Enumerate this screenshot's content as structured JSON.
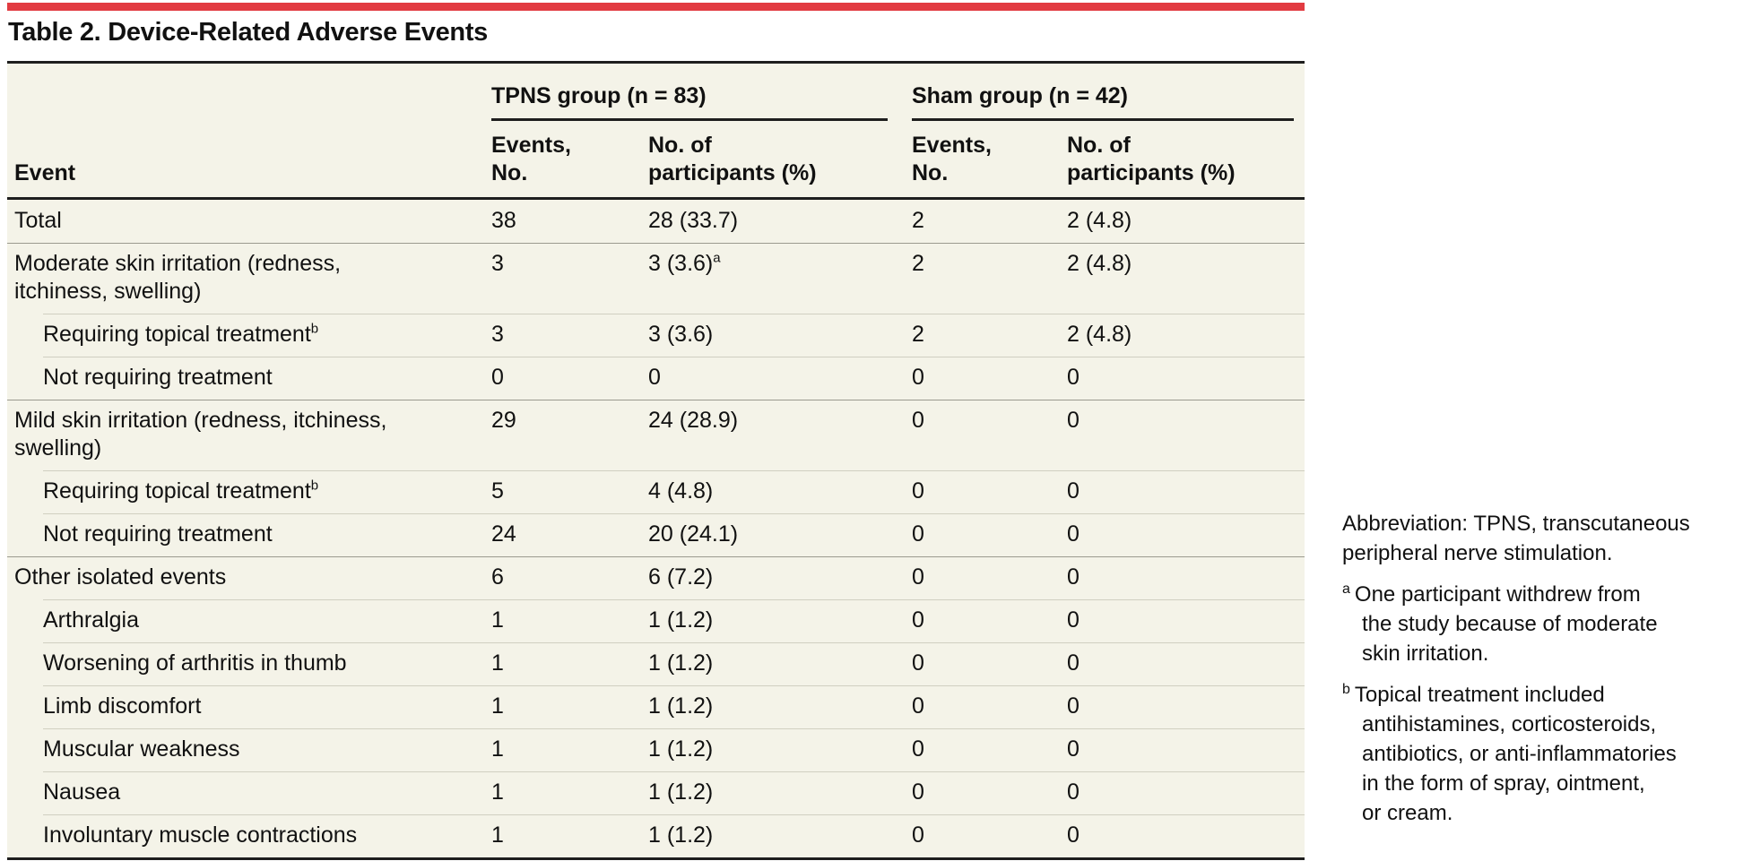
{
  "title": "Table 2. Device-Related Adverse Events",
  "colors": {
    "accent_red": "#e23b41",
    "table_bg": "#f4f3e8",
    "rule_dark": "#1e1e1e",
    "divider_section": "#9b9a8f",
    "divider_light": "#d0cfc1",
    "text": "#111111"
  },
  "table": {
    "groups": [
      {
        "label": "TPNS group (n = 83)"
      },
      {
        "label": "Sham group (n = 42)"
      }
    ],
    "columns": [
      "Event",
      "Events,\nNo.",
      "No. of\nparticipants (%)",
      "Events,\nNo.",
      "No. of\nparticipants (%)"
    ],
    "rows": [
      {
        "label": {
          "text": "Total"
        },
        "indent": false,
        "cells": [
          {
            "text": "38"
          },
          {
            "text": "28 (33.7)"
          },
          {
            "text": "2"
          },
          {
            "text": "2 (4.8)"
          }
        ]
      },
      {
        "label": {
          "text": "Moderate skin irritation (redness, itchiness, swelling)"
        },
        "indent": false,
        "cells": [
          {
            "text": "3"
          },
          {
            "text": "3 (3.6)",
            "sup": "a"
          },
          {
            "text": "2"
          },
          {
            "text": "2 (4.8)"
          }
        ]
      },
      {
        "label": {
          "text": "Requiring topical treatment",
          "sup": "b"
        },
        "indent": true,
        "cells": [
          {
            "text": "3"
          },
          {
            "text": "3 (3.6)"
          },
          {
            "text": "2"
          },
          {
            "text": "2 (4.8)"
          }
        ]
      },
      {
        "label": {
          "text": "Not requiring treatment"
        },
        "indent": true,
        "cells": [
          {
            "text": "0"
          },
          {
            "text": "0"
          },
          {
            "text": "0"
          },
          {
            "text": "0"
          }
        ]
      },
      {
        "label": {
          "text": "Mild skin irritation (redness, itchiness, swelling)"
        },
        "indent": false,
        "cells": [
          {
            "text": "29"
          },
          {
            "text": "24 (28.9)"
          },
          {
            "text": "0"
          },
          {
            "text": "0"
          }
        ]
      },
      {
        "label": {
          "text": "Requiring topical treatment",
          "sup": "b"
        },
        "indent": true,
        "cells": [
          {
            "text": "5"
          },
          {
            "text": "4 (4.8)"
          },
          {
            "text": "0"
          },
          {
            "text": "0"
          }
        ]
      },
      {
        "label": {
          "text": "Not requiring treatment"
        },
        "indent": true,
        "cells": [
          {
            "text": "24"
          },
          {
            "text": "20 (24.1)"
          },
          {
            "text": "0"
          },
          {
            "text": "0"
          }
        ]
      },
      {
        "label": {
          "text": "Other isolated events"
        },
        "indent": false,
        "cells": [
          {
            "text": "6"
          },
          {
            "text": "6 (7.2)"
          },
          {
            "text": "0"
          },
          {
            "text": "0"
          }
        ]
      },
      {
        "label": {
          "text": "Arthralgia"
        },
        "indent": true,
        "cells": [
          {
            "text": "1"
          },
          {
            "text": "1 (1.2)"
          },
          {
            "text": "0"
          },
          {
            "text": "0"
          }
        ]
      },
      {
        "label": {
          "text": "Worsening of arthritis in thumb"
        },
        "indent": true,
        "cells": [
          {
            "text": "1"
          },
          {
            "text": "1 (1.2)"
          },
          {
            "text": "0"
          },
          {
            "text": "0"
          }
        ]
      },
      {
        "label": {
          "text": "Limb discomfort"
        },
        "indent": true,
        "cells": [
          {
            "text": "1"
          },
          {
            "text": "1 (1.2)"
          },
          {
            "text": "0"
          },
          {
            "text": "0"
          }
        ]
      },
      {
        "label": {
          "text": "Muscular weakness"
        },
        "indent": true,
        "cells": [
          {
            "text": "1"
          },
          {
            "text": "1 (1.2)"
          },
          {
            "text": "0"
          },
          {
            "text": "0"
          }
        ]
      },
      {
        "label": {
          "text": "Nausea"
        },
        "indent": true,
        "cells": [
          {
            "text": "1"
          },
          {
            "text": "1 (1.2)"
          },
          {
            "text": "0"
          },
          {
            "text": "0"
          }
        ]
      },
      {
        "label": {
          "text": "Involuntary muscle contractions"
        },
        "indent": true,
        "cells": [
          {
            "text": "1"
          },
          {
            "text": "1 (1.2)"
          },
          {
            "text": "0"
          },
          {
            "text": "0"
          }
        ]
      }
    ]
  },
  "footnotes": {
    "abbreviation": "Abbreviation: TPNS, transcutaneous\nperipheral nerve stimulation.",
    "a": {
      "marker": "a",
      "text": "One participant withdrew from\nthe study because of moderate\nskin irritation."
    },
    "b": {
      "marker": "b",
      "text": "Topical treatment included\nantihistamines, corticosteroids,\nantibiotics, or anti-inflammatories\nin the form of spray, ointment,\nor cream."
    }
  }
}
